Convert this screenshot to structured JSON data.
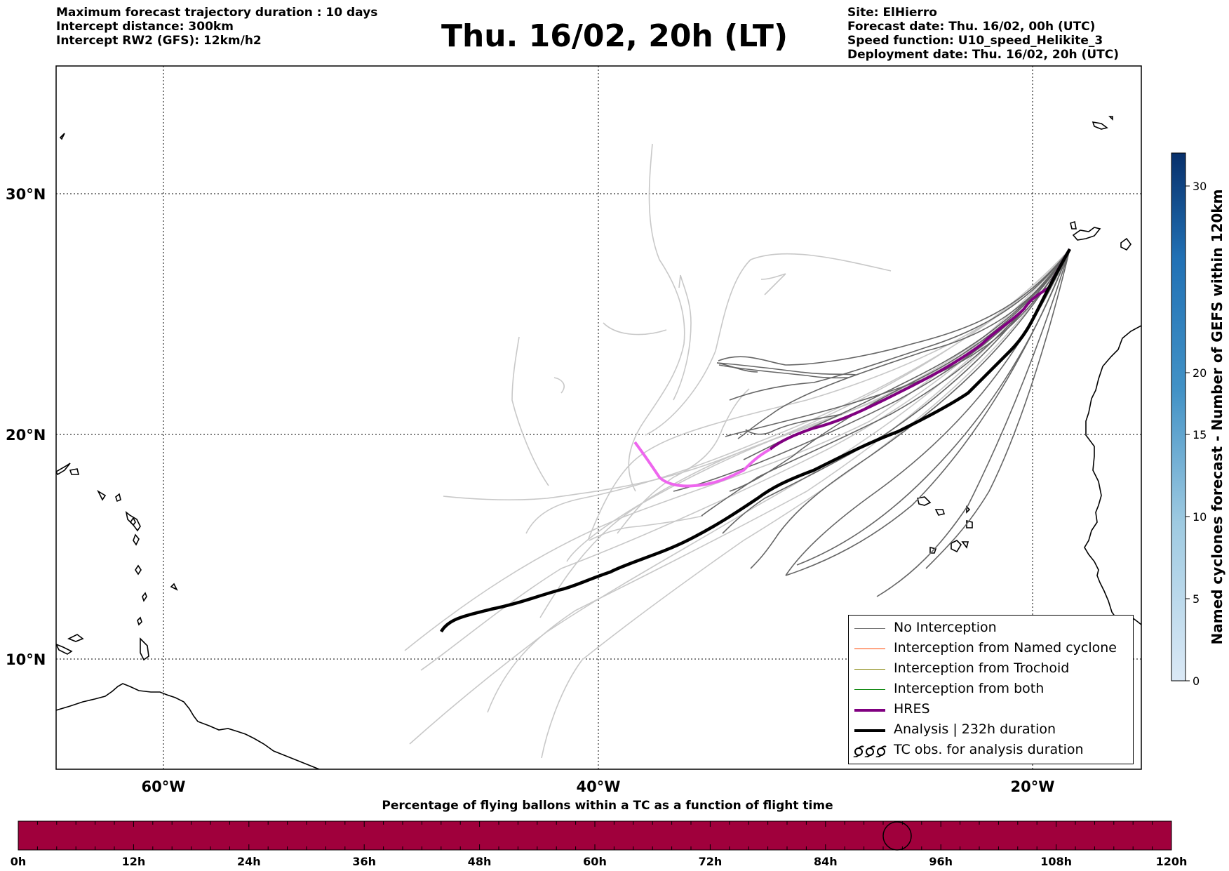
{
  "header_left": {
    "line1": "Maximum forecast trajectory duration : 10 days",
    "line2": "Intercept distance: 300km",
    "line3": "Intercept RW2 (GFS):  12km/h2"
  },
  "title": "Thu. 16/02, 20h (LT)",
  "header_right": {
    "site": "Site: ElHierro",
    "forecast_date": "Forecast date: Thu. 16/02, 00h (UTC)",
    "speed_function": "Speed function: U10_speed_Helikite_3",
    "deployment_date": "Deployment date: Thu. 16/02, 20h (UTC)"
  },
  "map": {
    "lat_labels": [
      "30°N",
      "20°N",
      "10°N"
    ],
    "lon_labels": [
      "60°W",
      "40°W",
      "20°W"
    ],
    "colors": {
      "no_interception": "#666666",
      "light_member": "#c8c8c8",
      "hres": "#800080",
      "hres_tail": "#ee66ee",
      "analysis": "#000000",
      "named_cyclone": "#ff4400",
      "trochoid": "#808000",
      "both": "#008000"
    }
  },
  "legend": {
    "items": [
      {
        "label": "No Interception",
        "color": "#777777",
        "style": "thin"
      },
      {
        "label": "Interception from Named cyclone",
        "color": "#ff4400",
        "style": "thin"
      },
      {
        "label": "Interception from Trochoid",
        "color": "#808000",
        "style": "thin"
      },
      {
        "label": "Interception from both",
        "color": "#008000",
        "style": "thin"
      },
      {
        "label": "HRES",
        "color": "#800080",
        "style": "thick"
      },
      {
        "label": "Analysis | 232h duration",
        "color": "#000000",
        "style": "thick"
      },
      {
        "label": "TC obs. for analysis duration",
        "color": "#000000",
        "style": "symbol"
      }
    ]
  },
  "colorbar": {
    "title": "Named cyclones forecast - Number of GEFS within 120km",
    "ticks": [
      "0",
      "5",
      "10",
      "15",
      "20",
      "30"
    ],
    "color_low": "#dbe9f6",
    "color_high": "#08306b"
  },
  "timeline": {
    "title": "Percentage of flying ballons within a TC as a function of flight time",
    "labels": [
      "0h",
      "12h",
      "24h",
      "36h",
      "48h",
      "60h",
      "72h",
      "84h",
      "96h",
      "108h",
      "120h"
    ],
    "bar_color": "#a0003c",
    "marker_time_h": 91.5
  }
}
